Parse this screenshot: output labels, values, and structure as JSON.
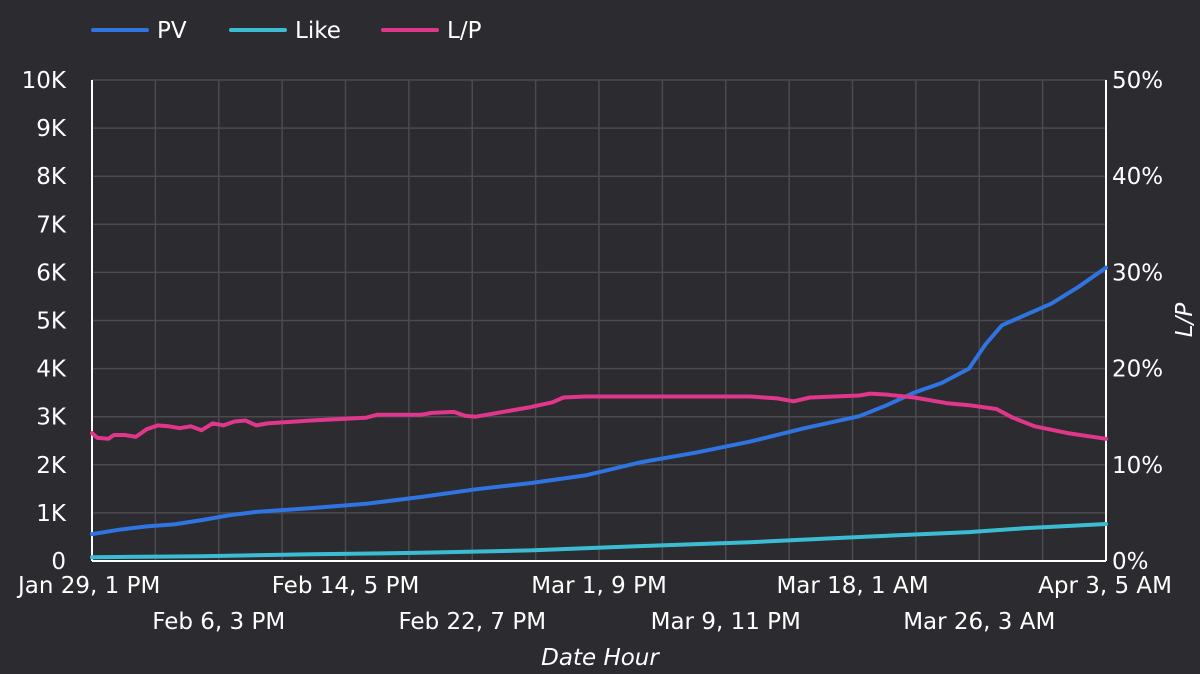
{
  "chart_data": {
    "type": "line",
    "xlabel": "Date Hour",
    "ylabel_right": "L/P",
    "ylim_left": [
      0,
      10000
    ],
    "ylim_right": [
      0,
      50
    ],
    "y_left_ticks": [
      "0",
      "1K",
      "2K",
      "3K",
      "4K",
      "5K",
      "6K",
      "7K",
      "8K",
      "9K",
      "10K"
    ],
    "y_right_ticks": [
      "0%",
      "10%",
      "20%",
      "30%",
      "40%",
      "50%"
    ],
    "x_ticks": [
      {
        "label": "Jan 29, 1 PM",
        "row": 0
      },
      {
        "label": "Feb 6, 3 PM",
        "row": 1
      },
      {
        "label": "Feb 14, 5 PM",
        "row": 0
      },
      {
        "label": "Feb 22, 7 PM",
        "row": 1
      },
      {
        "label": "Mar 1, 9 PM",
        "row": 0
      },
      {
        "label": "Mar 9, 11 PM",
        "row": 1
      },
      {
        "label": "Mar 18, 1 AM",
        "row": 0
      },
      {
        "label": "Mar 26, 3 AM",
        "row": 1
      },
      {
        "label": "Apr 3, 5 AM",
        "row": 0
      }
    ],
    "grid": true,
    "legend": "top-left",
    "x_unit": "index",
    "x_max": 160,
    "series": [
      {
        "name": "PV",
        "axis": "left",
        "color": "#2f74e0",
        "points": [
          [
            0,
            560
          ],
          [
            5,
            650
          ],
          [
            10,
            720
          ],
          [
            15,
            760
          ],
          [
            20,
            850
          ],
          [
            25,
            950
          ],
          [
            30,
            1020
          ],
          [
            40,
            1100
          ],
          [
            50,
            1190
          ],
          [
            60,
            1330
          ],
          [
            70,
            1490
          ],
          [
            80,
            1620
          ],
          [
            90,
            1780
          ],
          [
            100,
            2050
          ],
          [
            110,
            2250
          ],
          [
            120,
            2480
          ],
          [
            130,
            2760
          ],
          [
            140,
            3010
          ],
          [
            145,
            3240
          ],
          [
            150,
            3500
          ],
          [
            155,
            3700
          ],
          [
            160,
            4000
          ],
          [
            163,
            4500
          ],
          [
            166,
            4900
          ],
          [
            170,
            5100
          ],
          [
            175,
            5350
          ],
          [
            180,
            5700
          ],
          [
            185,
            6100
          ]
        ]
      },
      {
        "name": "Like",
        "axis": "left",
        "color": "#3cbcd2",
        "points": [
          [
            0,
            80
          ],
          [
            20,
            100
          ],
          [
            40,
            140
          ],
          [
            60,
            170
          ],
          [
            80,
            220
          ],
          [
            100,
            310
          ],
          [
            120,
            390
          ],
          [
            140,
            500
          ],
          [
            160,
            600
          ],
          [
            170,
            680
          ],
          [
            185,
            770
          ]
        ]
      },
      {
        "name": "L/P",
        "axis": "right",
        "color": "#e0368c",
        "points": [
          [
            0,
            13.3
          ],
          [
            1,
            12.8
          ],
          [
            3,
            12.7
          ],
          [
            4,
            13.1
          ],
          [
            6,
            13.1
          ],
          [
            8,
            12.9
          ],
          [
            10,
            13.7
          ],
          [
            12,
            14.1
          ],
          [
            14,
            14.0
          ],
          [
            16,
            13.8
          ],
          [
            18,
            14.0
          ],
          [
            20,
            13.6
          ],
          [
            22,
            14.3
          ],
          [
            24,
            14.1
          ],
          [
            26,
            14.5
          ],
          [
            28,
            14.6
          ],
          [
            30,
            14.1
          ],
          [
            32,
            14.3
          ],
          [
            40,
            14.6
          ],
          [
            50,
            14.9
          ],
          [
            52,
            15.2
          ],
          [
            60,
            15.2
          ],
          [
            62,
            15.4
          ],
          [
            66,
            15.5
          ],
          [
            68,
            15.1
          ],
          [
            70,
            15.0
          ],
          [
            80,
            16.0
          ],
          [
            84,
            16.5
          ],
          [
            86,
            17.0
          ],
          [
            90,
            17.1
          ],
          [
            100,
            17.1
          ],
          [
            110,
            17.1
          ],
          [
            120,
            17.1
          ],
          [
            125,
            16.9
          ],
          [
            128,
            16.6
          ],
          [
            131,
            17.0
          ],
          [
            140,
            17.2
          ],
          [
            142,
            17.4
          ],
          [
            145,
            17.3
          ],
          [
            150,
            17.0
          ],
          [
            153,
            16.7
          ],
          [
            156,
            16.4
          ],
          [
            160,
            16.2
          ],
          [
            165,
            15.8
          ],
          [
            168,
            14.9
          ],
          [
            172,
            14.0
          ],
          [
            178,
            13.3
          ],
          [
            185,
            12.7
          ]
        ]
      }
    ]
  }
}
